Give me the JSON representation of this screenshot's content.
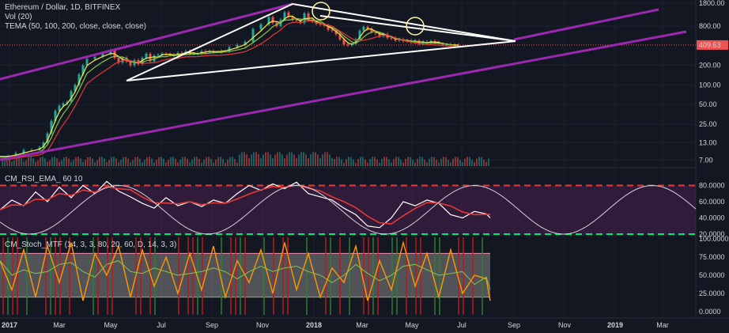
{
  "main_legend": {
    "symbol": "Ethereum / Dollar, 1D, BITFINEX",
    "vol": "Vol (20)",
    "tema": "TEMA (50, 100, 200, close, close, close)"
  },
  "rsi_legend": "CM_RSI_EMA_ 60 10",
  "stoch_legend": "CM_Stoch_MTF (14, 3, 3, 80, 20, 60, D, 14, 3, 3)",
  "price_axis": [
    "1800.00",
    "800.00",
    "409.63",
    "200.00",
    "100.00",
    "50.00",
    "25.00",
    "13.00",
    "7.00"
  ],
  "last_price": "409.63",
  "rsi_axis": [
    "80.0000",
    "60.0000",
    "40.0000",
    "20.0000"
  ],
  "stoch_axis": [
    "100.0000",
    "75.0000",
    "50.0000",
    "25.0000",
    "0.0000"
  ],
  "time_axis": [
    "2017",
    "Mar",
    "May",
    "Jul",
    "Sep",
    "Nov",
    "2018",
    "Mar",
    "May",
    "Jul",
    "Sep",
    "Nov",
    "2019",
    "Mar"
  ],
  "colors": {
    "background": "#131722",
    "up_candle": "#26a69a",
    "down_candle": "#ef5350",
    "channel": "#9c27b0",
    "triangle": "#ffffff",
    "price_line": "#ef5350",
    "tema50": "#ffeb3b",
    "tema100": "#8bc34a",
    "tema200": "#e53935",
    "rsi": "#ffffff",
    "rsi_ema": "#e53935",
    "rsi_upper": "#e53935",
    "rsi_lower": "#00e676",
    "rsi_band": "#4a1f4f",
    "stoch_k": "#ff9800",
    "stoch_d": "#8bc34a",
    "stoch_band": "#9e9e9e",
    "cycle": "#d1d4dc"
  },
  "chart_data": [
    {
      "type": "line",
      "name": "price",
      "scale": "log",
      "ylim": [
        6,
        1900
      ],
      "x": [
        0,
        10,
        20,
        30,
        40,
        50,
        55,
        60,
        65,
        70,
        75,
        80,
        85,
        90,
        95,
        100,
        105,
        110,
        120,
        130,
        140,
        145,
        150,
        155,
        160,
        165,
        170,
        175,
        180,
        185,
        190,
        195,
        200,
        205,
        210,
        215,
        220,
        225,
        230,
        235,
        240,
        245,
        250,
        255,
        260,
        265,
        270,
        280,
        290,
        300,
        310,
        320,
        330,
        340,
        345,
        350,
        355,
        360,
        365,
        370,
        375,
        380,
        385,
        390,
        395,
        400,
        405,
        410,
        415,
        420,
        425,
        430,
        435,
        440,
        445,
        450,
        455,
        460,
        465,
        470,
        475,
        480,
        485,
        490,
        495,
        500,
        505,
        510,
        515,
        520,
        525,
        530,
        535,
        540,
        545,
        550,
        555,
        560,
        565,
        570,
        575,
        580
      ],
      "y": [
        8,
        8,
        9,
        10,
        10,
        11,
        13,
        18,
        28,
        40,
        48,
        52,
        55,
        80,
        100,
        145,
        200,
        250,
        270,
        300,
        340,
        260,
        220,
        260,
        230,
        200,
        240,
        210,
        260,
        300,
        230,
        280,
        290,
        300,
        295,
        290,
        280,
        310,
        300,
        330,
        300,
        300,
        305,
        330,
        320,
        330,
        320,
        330,
        380,
        410,
        460,
        720,
        850,
        1100,
        900,
        800,
        1000,
        1300,
        1100,
        1000,
        980,
        900,
        1250,
        1000,
        940,
        870,
        850,
        820,
        700,
        680,
        600,
        500,
        420,
        410,
        430,
        500,
        680,
        780,
        720,
        650,
        620,
        560,
        600,
        530,
        520,
        480,
        500,
        470,
        480,
        450,
        480,
        430,
        460,
        440,
        470,
        450,
        430,
        415,
        420,
        405,
        410,
        409.63
      ]
    },
    {
      "type": "line",
      "name": "CM_RSI_EMA_",
      "ylim": [
        20,
        100
      ],
      "x": [
        0,
        15,
        30,
        45,
        60,
        75,
        90,
        105,
        120,
        135,
        150,
        165,
        180,
        195,
        210,
        225,
        240,
        255,
        270,
        285,
        300,
        315,
        330,
        345,
        360,
        375,
        390,
        405,
        420,
        435,
        450,
        465,
        480,
        495,
        510,
        525,
        540,
        555,
        570,
        585,
        600,
        615,
        620
      ],
      "y": [
        50,
        62,
        55,
        72,
        60,
        78,
        65,
        80,
        70,
        85,
        73,
        66,
        58,
        52,
        65,
        55,
        60,
        54,
        62,
        58,
        70,
        80,
        74,
        82,
        76,
        84,
        70,
        66,
        62,
        52,
        44,
        30,
        28,
        40,
        60,
        55,
        62,
        58,
        44,
        40,
        48,
        45,
        40
      ]
    },
    {
      "type": "line",
      "name": "CM_Stoch_MTF",
      "ylim": [
        0,
        100
      ],
      "x": [
        0,
        15,
        30,
        45,
        60,
        75,
        90,
        105,
        120,
        135,
        150,
        165,
        180,
        195,
        210,
        225,
        240,
        255,
        270,
        285,
        300,
        315,
        330,
        345,
        360,
        375,
        390,
        405,
        420,
        435,
        450,
        465,
        480,
        495,
        510,
        525,
        540,
        555,
        570,
        585,
        600,
        615,
        620
      ],
      "y": [
        70,
        30,
        85,
        20,
        90,
        40,
        95,
        15,
        80,
        50,
        90,
        20,
        85,
        35,
        75,
        25,
        80,
        30,
        90,
        20,
        70,
        40,
        85,
        25,
        95,
        30,
        80,
        20,
        60,
        40,
        90,
        15,
        70,
        30,
        95,
        35,
        80,
        20,
        85,
        25,
        50,
        45,
        15
      ]
    }
  ]
}
